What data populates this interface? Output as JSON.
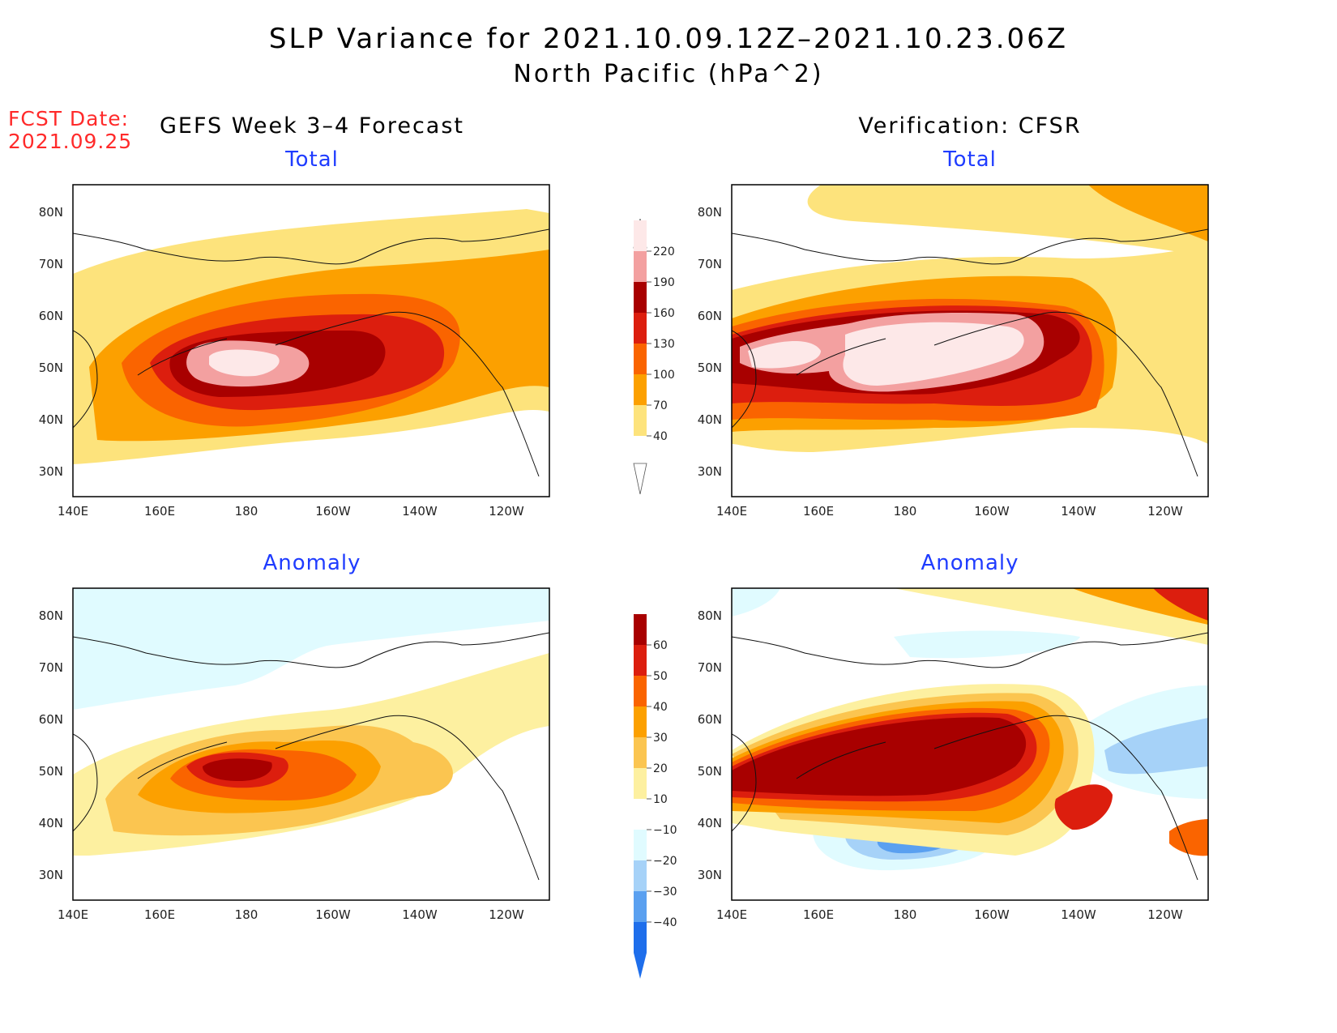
{
  "title_line1": "SLP Variance for 2021.10.09.12Z–2021.10.23.06Z",
  "title_line2": "North Pacific (hPa^2)",
  "fcst_label": "FCST Date:",
  "fcst_date": "2021.09.25",
  "left_column_title": "GEFS Week 3–4 Forecast",
  "right_column_title": "Verification: CFSR",
  "lon_labels": [
    "140E",
    "160E",
    "180",
    "160W",
    "140W",
    "120W"
  ],
  "lat_labels": [
    "80N",
    "70N",
    "60N",
    "50N",
    "40N",
    "30N"
  ],
  "panels": {
    "forecast_total": {
      "title": "Total"
    },
    "verification_total": {
      "title": "Total"
    },
    "forecast_anomaly": {
      "title": "Anomaly"
    },
    "verification_anomaly": {
      "title": "Anomaly"
    }
  },
  "colorbar_total": {
    "labels": [
      "220",
      "190",
      "160",
      "130",
      "100",
      "70",
      "40"
    ],
    "colors": [
      "#fde8e8",
      "#f3a0a0",
      "#a80000",
      "#dc1e0e",
      "#fa6400",
      "#fca000",
      "#fde37c"
    ]
  },
  "colorbar_anomaly": {
    "labels": [
      "60",
      "50",
      "40",
      "30",
      "20",
      "10",
      "−10",
      "−20",
      "−30",
      "−40"
    ],
    "colors": [
      "#a80000",
      "#dc1e0e",
      "#fa6400",
      "#fca000",
      "#fbc550",
      "#fdf0a0",
      "#ffffff",
      "#e0fbff",
      "#a6d2f8",
      "#5aa0f0",
      "#1e6eeb"
    ]
  },
  "colors": {
    "title_red": "#ff2a2a",
    "panel_title_blue": "#1f3cff"
  }
}
